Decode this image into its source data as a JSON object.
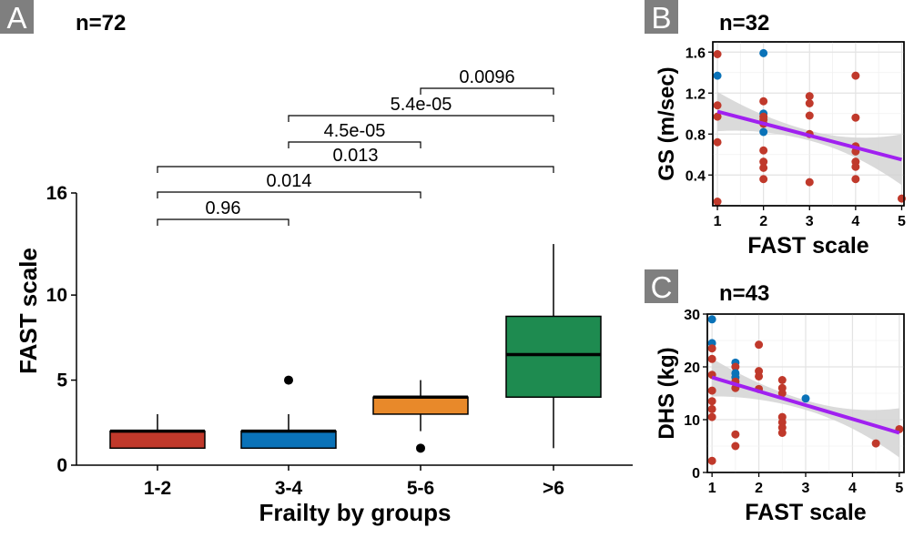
{
  "panels": {
    "A": {
      "letter": "A",
      "n_label": "n=72"
    },
    "B": {
      "letter": "B",
      "n_label": "n=32"
    },
    "C": {
      "letter": "C",
      "n_label": "n=43"
    }
  },
  "chart_data": [
    {
      "type": "box",
      "panel": "A",
      "xlabel": "Frailty by groups",
      "ylabel": "FAST scale",
      "ylim": [
        0,
        16
      ],
      "yticks": [
        0,
        5,
        10,
        16
      ],
      "categories": [
        "1-2",
        "3-4",
        "5-6",
        ">6"
      ],
      "colors": [
        "#c0392b",
        "#0a72b8",
        "#e8892a",
        "#1e8b50"
      ],
      "boxes": [
        {
          "category": "1-2",
          "min": 1,
          "q1": 1,
          "median": 2,
          "q3": 2,
          "max": 3,
          "outliers": []
        },
        {
          "category": "3-4",
          "min": 1,
          "q1": 1,
          "median": 2,
          "q3": 2,
          "max": 3,
          "outliers": [
            5
          ]
        },
        {
          "category": "5-6",
          "min": 2,
          "q1": 3,
          "median": 4,
          "q3": 4,
          "max": 5,
          "outliers": [
            1
          ]
        },
        {
          "category": ">6",
          "min": 1,
          "q1": 4,
          "median": 6.5,
          "q3": 8.75,
          "max": 13,
          "outliers": []
        }
      ],
      "comparisons": [
        {
          "from": "1-2",
          "to": "3-4",
          "label": "0.96"
        },
        {
          "from": "1-2",
          "to": "5-6",
          "label": "0.014"
        },
        {
          "from": "1-2",
          "to": ">6",
          "label": "0.013"
        },
        {
          "from": "3-4",
          "to": "5-6",
          "label": "4.5e-05"
        },
        {
          "from": "3-4",
          "to": ">6",
          "label": "5.4e-05"
        },
        {
          "from": "5-6",
          "to": ">6",
          "label": "0.0096"
        }
      ]
    },
    {
      "type": "scatter",
      "panel": "B",
      "xlabel": "FAST scale",
      "ylabel": "GS (m/sec)",
      "xlim": [
        0.9,
        5.05
      ],
      "ylim": [
        0.1,
        1.7
      ],
      "xticks": [
        1,
        2,
        3,
        4,
        5
      ],
      "yticks": [
        0.4,
        0.8,
        1.2,
        1.6
      ],
      "yticklabels": [
        "0.4",
        "0.8",
        "1.2",
        "1.6"
      ],
      "grid": true,
      "trend": {
        "x": [
          1,
          5
        ],
        "y": [
          1.02,
          0.55
        ],
        "color": "#a020f0",
        "band": "#d4d4d4"
      },
      "points": [
        {
          "x": 1,
          "y": 1.58,
          "c": "r"
        },
        {
          "x": 1,
          "y": 1.37,
          "c": "b"
        },
        {
          "x": 1,
          "y": 1.08,
          "c": "r"
        },
        {
          "x": 1,
          "y": 0.97,
          "c": "r"
        },
        {
          "x": 1,
          "y": 0.72,
          "c": "r"
        },
        {
          "x": 1,
          "y": 0.14,
          "c": "r"
        },
        {
          "x": 2,
          "y": 1.59,
          "c": "b"
        },
        {
          "x": 2,
          "y": 1.12,
          "c": "r"
        },
        {
          "x": 2,
          "y": 1.0,
          "c": "b"
        },
        {
          "x": 2,
          "y": 0.97,
          "c": "r"
        },
        {
          "x": 2,
          "y": 0.94,
          "c": "r"
        },
        {
          "x": 2,
          "y": 0.9,
          "c": "r"
        },
        {
          "x": 2,
          "y": 0.82,
          "c": "b"
        },
        {
          "x": 2,
          "y": 0.64,
          "c": "r"
        },
        {
          "x": 2,
          "y": 0.53,
          "c": "r"
        },
        {
          "x": 2,
          "y": 0.47,
          "c": "r"
        },
        {
          "x": 2,
          "y": 0.36,
          "c": "r"
        },
        {
          "x": 3,
          "y": 1.17,
          "c": "r"
        },
        {
          "x": 3,
          "y": 1.1,
          "c": "r"
        },
        {
          "x": 3,
          "y": 0.98,
          "c": "r"
        },
        {
          "x": 3,
          "y": 0.8,
          "c": "r"
        },
        {
          "x": 3,
          "y": 0.33,
          "c": "r"
        },
        {
          "x": 4,
          "y": 1.37,
          "c": "r"
        },
        {
          "x": 4,
          "y": 0.96,
          "c": "r"
        },
        {
          "x": 4,
          "y": 0.68,
          "c": "r"
        },
        {
          "x": 4,
          "y": 0.63,
          "c": "r"
        },
        {
          "x": 4,
          "y": 0.53,
          "c": "r"
        },
        {
          "x": 4,
          "y": 0.48,
          "c": "r"
        },
        {
          "x": 4,
          "y": 0.36,
          "c": "r"
        },
        {
          "x": 5,
          "y": 0.17,
          "c": "r"
        }
      ]
    },
    {
      "type": "scatter",
      "panel": "C",
      "xlabel": "FAST scale",
      "ylabel": "DHS (kg)",
      "xlim": [
        0.9,
        5.1
      ],
      "ylim": [
        0,
        30
      ],
      "xticks": [
        1,
        2,
        3,
        4,
        5
      ],
      "yticks": [
        0,
        10,
        20,
        30
      ],
      "yticklabels": [
        "0",
        "10",
        "20",
        "30"
      ],
      "grid": true,
      "trend": {
        "x": [
          1,
          5
        ],
        "y": [
          18,
          7.5
        ],
        "color": "#a020f0",
        "band": "#d4d4d4"
      },
      "points": [
        {
          "x": 1,
          "y": 29,
          "c": "b"
        },
        {
          "x": 1,
          "y": 24.5,
          "c": "b"
        },
        {
          "x": 1,
          "y": 23.5,
          "c": "r"
        },
        {
          "x": 1,
          "y": 21.5,
          "c": "r"
        },
        {
          "x": 1,
          "y": 18.5,
          "c": "r"
        },
        {
          "x": 1,
          "y": 15.5,
          "c": "r"
        },
        {
          "x": 1,
          "y": 13.5,
          "c": "r"
        },
        {
          "x": 1,
          "y": 12,
          "c": "r"
        },
        {
          "x": 1,
          "y": 10.5,
          "c": "r"
        },
        {
          "x": 1,
          "y": 2.2,
          "c": "r"
        },
        {
          "x": 1.5,
          "y": 20.8,
          "c": "b"
        },
        {
          "x": 1.5,
          "y": 20,
          "c": "r"
        },
        {
          "x": 1.5,
          "y": 18.8,
          "c": "b"
        },
        {
          "x": 1.5,
          "y": 18,
          "c": "b"
        },
        {
          "x": 1.5,
          "y": 17.2,
          "c": "r"
        },
        {
          "x": 1.5,
          "y": 16,
          "c": "r"
        },
        {
          "x": 1.5,
          "y": 7.2,
          "c": "r"
        },
        {
          "x": 1.5,
          "y": 5,
          "c": "r"
        },
        {
          "x": 2,
          "y": 24.2,
          "c": "r"
        },
        {
          "x": 2,
          "y": 19.2,
          "c": "r"
        },
        {
          "x": 2,
          "y": 18.2,
          "c": "r"
        },
        {
          "x": 2,
          "y": 15.8,
          "c": "r"
        },
        {
          "x": 2.5,
          "y": 17.5,
          "c": "r"
        },
        {
          "x": 2.5,
          "y": 16,
          "c": "r"
        },
        {
          "x": 2.5,
          "y": 15,
          "c": "r"
        },
        {
          "x": 2.5,
          "y": 10.5,
          "c": "r"
        },
        {
          "x": 2.5,
          "y": 9.5,
          "c": "r"
        },
        {
          "x": 2.5,
          "y": 8.5,
          "c": "r"
        },
        {
          "x": 2.5,
          "y": 7.5,
          "c": "r"
        },
        {
          "x": 3,
          "y": 14,
          "c": "b"
        },
        {
          "x": 4.5,
          "y": 5.5,
          "c": "r"
        },
        {
          "x": 5,
          "y": 8.2,
          "c": "r"
        }
      ]
    }
  ],
  "point_colors": {
    "r": "#c0392b",
    "b": "#0a72b8"
  }
}
